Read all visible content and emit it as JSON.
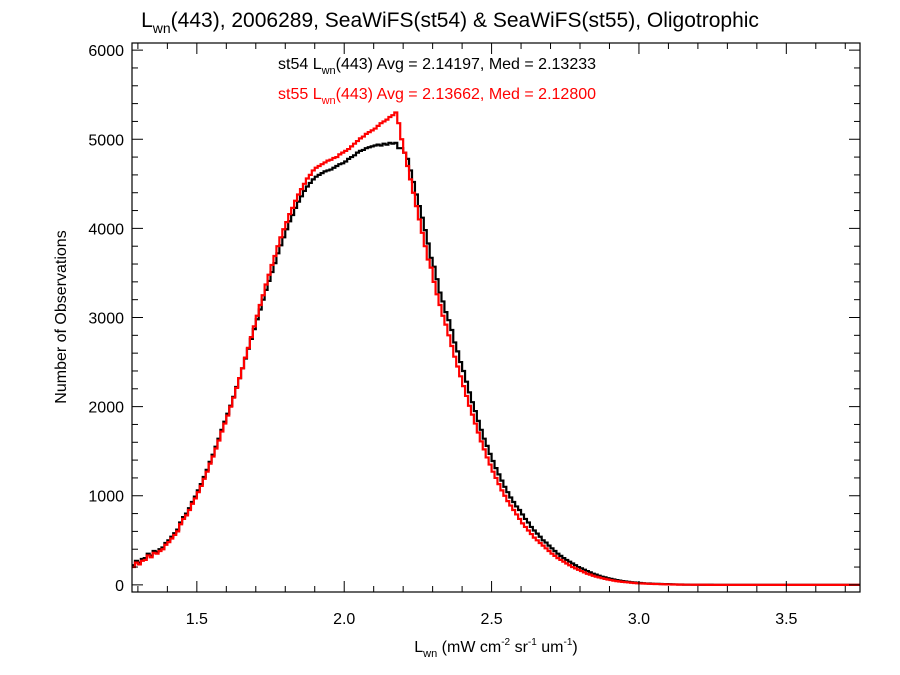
{
  "chart_data": {
    "type": "histogram-step",
    "title": {
      "prefix": "L",
      "sub": "wn",
      "suffix": "(443), 2006289, SeaWiFS(st54) & SeaWiFS(st55), Oligotrophic"
    },
    "xlabel": {
      "main": "L",
      "sub": "wn",
      "units": [
        {
          "t": " (mW cm",
          "s": ""
        },
        {
          "t": "-2",
          "s": "sup"
        },
        {
          "t": " sr",
          "s": ""
        },
        {
          "t": "-1",
          "s": "sup"
        },
        {
          "t": " um",
          "s": ""
        },
        {
          "t": "-1",
          "s": "sup"
        },
        {
          "t": ")",
          "s": ""
        }
      ]
    },
    "ylabel": "Number of Observations",
    "xlim": [
      1.28,
      3.75
    ],
    "ylim": [
      -80,
      6080
    ],
    "xticks": [
      1.5,
      2.0,
      2.5,
      3.0,
      3.5
    ],
    "xtick_labels": [
      "1.5",
      "2.0",
      "2.5",
      "3.0",
      "3.5"
    ],
    "yticks": [
      0,
      1000,
      2000,
      3000,
      4000,
      5000,
      6000
    ],
    "ytick_labels": [
      "0",
      "1000",
      "2000",
      "3000",
      "4000",
      "5000",
      "6000"
    ],
    "bin_width": 0.01,
    "legend": [
      {
        "label_pre": "st54 L",
        "label_sub": "wn",
        "label_post": "(443) Avg = 2.14197, Med = 2.13233",
        "color": "#000000"
      },
      {
        "label_pre": "st55 L",
        "label_sub": "wn",
        "label_post": "(443) Avg = 2.13662, Med = 2.12800",
        "color": "#ff0000"
      }
    ],
    "series": [
      {
        "color": "#000000",
        "x_start": 1.28,
        "values": [
          220,
          270,
          250,
          290,
          300,
          350,
          330,
          380,
          370,
          400,
          420,
          470,
          500,
          540,
          580,
          620,
          700,
          760,
          800,
          860,
          930,
          990,
          1060,
          1130,
          1210,
          1290,
          1380,
          1460,
          1550,
          1640,
          1740,
          1830,
          1920,
          2010,
          2110,
          2220,
          2320,
          2430,
          2540,
          2650,
          2760,
          2870,
          2980,
          3090,
          3200,
          3310,
          3410,
          3510,
          3610,
          3720,
          3810,
          3900,
          3990,
          4080,
          4150,
          4230,
          4300,
          4360,
          4420,
          4470,
          4510,
          4550,
          4580,
          4600,
          4620,
          4640,
          4650,
          4660,
          4680,
          4700,
          4720,
          4730,
          4750,
          4780,
          4800,
          4820,
          4850,
          4870,
          4880,
          4900,
          4910,
          4920,
          4930,
          4940,
          4930,
          4950,
          4940,
          4960,
          4950,
          4960,
          4900,
          4900,
          4850,
          4780,
          4650,
          4520,
          4380,
          4250,
          4120,
          3980,
          3830,
          3670,
          3570,
          3430,
          3280,
          3180,
          3060,
          2970,
          2860,
          2720,
          2620,
          2500,
          2400,
          2280,
          2160,
          2050,
          1950,
          1840,
          1740,
          1640,
          1560,
          1470,
          1390,
          1310,
          1240,
          1170,
          1100,
          1040,
          980,
          930,
          880,
          840,
          790,
          740,
          700,
          650,
          610,
          575,
          540,
          500,
          475,
          440,
          410,
          380,
          350,
          325,
          300,
          280,
          260,
          240,
          220,
          200,
          185,
          170,
          155,
          140,
          125,
          115,
          102,
          92,
          84,
          75,
          67,
          60,
          54,
          48,
          42,
          38,
          34,
          30,
          27,
          24,
          21,
          18,
          16,
          15,
          13,
          12,
          11,
          10,
          9,
          8,
          7,
          6,
          5,
          4,
          4,
          3,
          3,
          2,
          2,
          2,
          1,
          1,
          1,
          1,
          1,
          0,
          0,
          0,
          0,
          0,
          0,
          0,
          0,
          0,
          0,
          0,
          0,
          0,
          0,
          0,
          0,
          0,
          0,
          0,
          0,
          0,
          0,
          0,
          0,
          0,
          0,
          0,
          0,
          0,
          0,
          0,
          0,
          0,
          0,
          0,
          0,
          0,
          0,
          0,
          0,
          0,
          0,
          0,
          0,
          0,
          0,
          0,
          0,
          0,
          0,
          0,
          0,
          0,
          0,
          0,
          0,
          0,
          0,
          0,
          0,
          0,
          0,
          0,
          0,
          0,
          0,
          0,
          0,
          0,
          0,
          0,
          0,
          0,
          0,
          0
        ]
      },
      {
        "color": "#ff0000",
        "x_start": 1.28,
        "values": [
          200,
          250,
          230,
          270,
          280,
          330,
          310,
          360,
          350,
          380,
          400,
          450,
          480,
          520,
          560,
          600,
          680,
          740,
          780,
          840,
          910,
          970,
          1040,
          1110,
          1190,
          1270,
          1360,
          1440,
          1530,
          1620,
          1720,
          1810,
          1900,
          2000,
          2100,
          2210,
          2320,
          2430,
          2550,
          2660,
          2780,
          2900,
          3020,
          3140,
          3250,
          3370,
          3480,
          3590,
          3690,
          3800,
          3900,
          3990,
          4070,
          4160,
          4230,
          4310,
          4380,
          4440,
          4500,
          4560,
          4600,
          4650,
          4680,
          4700,
          4720,
          4740,
          4760,
          4770,
          4790,
          4800,
          4830,
          4850,
          4870,
          4890,
          4920,
          4950,
          4980,
          5010,
          5030,
          5060,
          5080,
          5100,
          5120,
          5150,
          5180,
          5200,
          5220,
          5250,
          5270,
          5300,
          5180,
          5000,
          4850,
          4700,
          4550,
          4400,
          4250,
          4100,
          3950,
          3800,
          3650,
          3560,
          3400,
          3260,
          3140,
          3020,
          2920,
          2800,
          2680,
          2560,
          2450,
          2340,
          2230,
          2120,
          2010,
          1910,
          1810,
          1710,
          1610,
          1520,
          1430,
          1350,
          1270,
          1200,
          1130,
          1060,
          1000,
          940,
          890,
          840,
          790,
          740,
          690,
          650,
          610,
          570,
          530,
          500,
          470,
          440,
          410,
          380,
          350,
          325,
          300,
          280,
          260,
          240,
          220,
          200,
          185,
          170,
          155,
          140,
          125,
          115,
          102,
          92,
          84,
          75,
          67,
          60,
          54,
          48,
          42,
          38,
          34,
          30,
          27,
          24,
          21,
          18,
          16,
          15,
          13,
          12,
          11,
          10,
          9,
          8,
          7,
          6,
          5,
          4,
          4,
          3,
          3,
          2,
          2,
          2,
          1,
          1,
          1,
          1,
          1,
          0,
          0,
          0,
          0,
          0,
          0,
          0,
          0,
          0,
          0,
          0,
          0,
          0,
          0,
          0,
          0,
          0,
          0,
          0,
          0,
          0,
          0,
          0,
          0,
          0,
          0,
          0,
          0,
          0,
          0,
          0,
          0,
          0,
          0,
          0,
          0,
          0,
          0,
          0,
          0,
          0,
          0,
          0,
          0,
          0,
          0,
          0,
          0,
          0,
          0,
          0,
          0,
          0,
          0,
          0,
          0,
          0,
          0,
          0,
          0,
          0,
          0,
          0,
          0,
          0,
          0,
          0,
          0,
          0,
          0,
          0,
          0,
          0,
          0,
          0
        ]
      }
    ]
  }
}
